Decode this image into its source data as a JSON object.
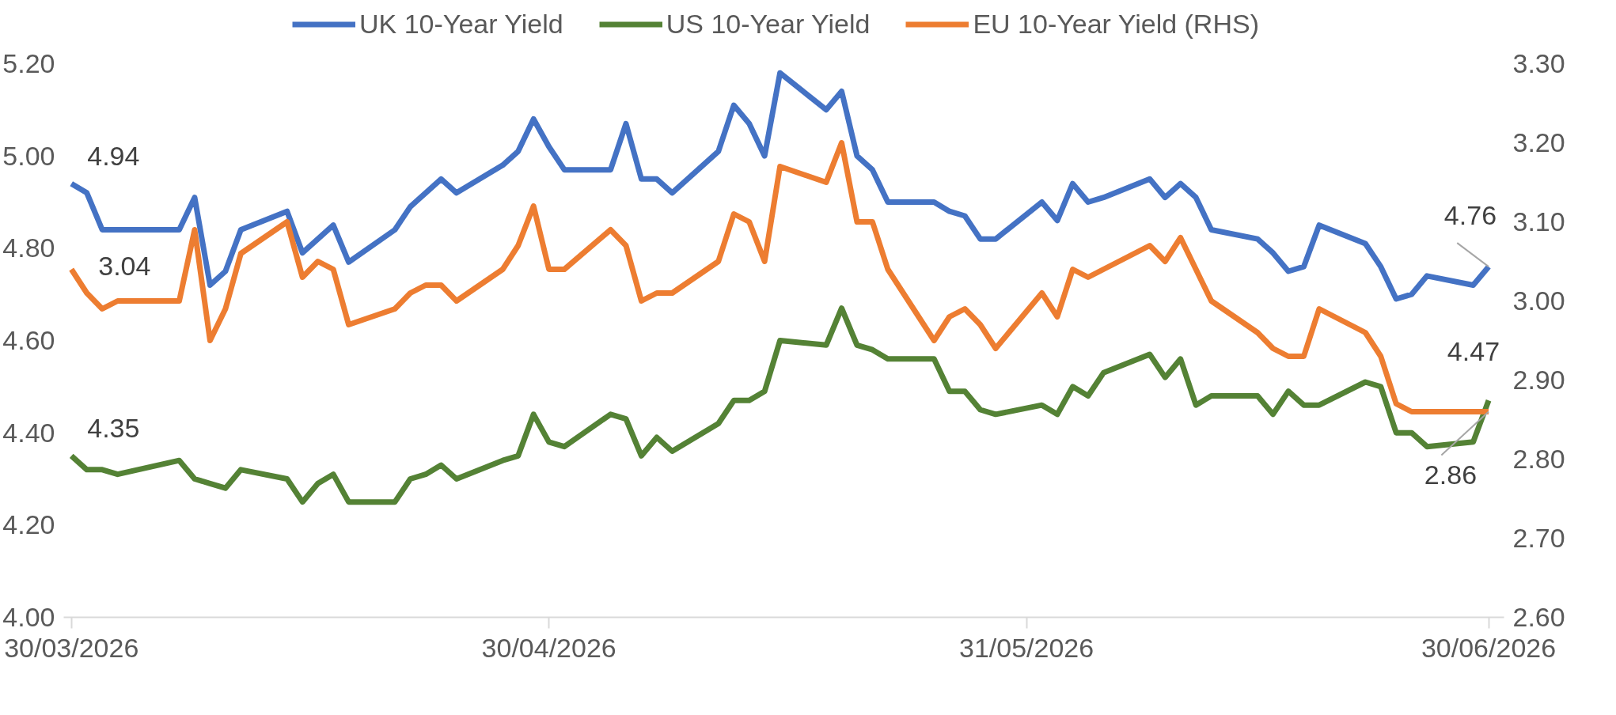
{
  "chart_data": {
    "type": "line",
    "x": [
      "2026-03-30",
      "2026-03-31",
      "2026-04-01",
      "2026-04-02",
      "2026-04-06",
      "2026-04-07",
      "2026-04-08",
      "2026-04-09",
      "2026-04-10",
      "2026-04-13",
      "2026-04-14",
      "2026-04-15",
      "2026-04-16",
      "2026-04-17",
      "2026-04-20",
      "2026-04-21",
      "2026-04-22",
      "2026-04-23",
      "2026-04-24",
      "2026-04-27",
      "2026-04-28",
      "2026-04-29",
      "2026-04-30",
      "2026-05-01",
      "2026-05-04",
      "2026-05-05",
      "2026-05-06",
      "2026-05-07",
      "2026-05-08",
      "2026-05-11",
      "2026-05-12",
      "2026-05-13",
      "2026-05-14",
      "2026-05-15",
      "2026-05-18",
      "2026-05-19",
      "2026-05-20",
      "2026-05-21",
      "2026-05-22",
      "2026-05-25",
      "2026-05-26",
      "2026-05-27",
      "2026-05-28",
      "2026-05-29",
      "2026-06-01",
      "2026-06-02",
      "2026-06-03",
      "2026-06-04",
      "2026-06-05",
      "2026-06-08",
      "2026-06-09",
      "2026-06-10",
      "2026-06-11",
      "2026-06-12",
      "2026-06-15",
      "2026-06-16",
      "2026-06-17",
      "2026-06-18",
      "2026-06-19",
      "2026-06-22",
      "2026-06-23",
      "2026-06-24",
      "2026-06-25",
      "2026-06-26",
      "2026-06-29",
      "2026-06-30"
    ],
    "series": [
      {
        "name": "UK 10-Year Yield",
        "color": "#4472c4",
        "values": [
          4.94,
          4.92,
          4.84,
          4.84,
          4.84,
          4.91,
          4.72,
          4.75,
          4.84,
          4.88,
          4.79,
          4.82,
          4.85,
          4.77,
          4.84,
          4.89,
          4.92,
          4.95,
          4.92,
          4.98,
          5.01,
          5.08,
          5.02,
          4.97,
          4.97,
          5.07,
          4.95,
          4.95,
          4.92,
          5.01,
          5.11,
          5.07,
          5.0,
          5.18,
          5.1,
          5.14,
          5.0,
          4.97,
          4.9,
          4.9,
          4.88,
          4.87,
          4.82,
          4.82,
          4.9,
          4.86,
          4.94,
          4.9,
          4.91,
          4.95,
          4.91,
          4.94,
          4.91,
          4.84,
          4.82,
          4.79,
          4.75,
          4.76,
          4.85,
          4.81,
          4.76,
          4.69,
          4.7,
          4.74,
          4.72,
          4.76
        ],
        "value_labels": [
          "4.94",
          null,
          null,
          null,
          null,
          null,
          null,
          null,
          null,
          null,
          null,
          null,
          null,
          null,
          null,
          null,
          null,
          null,
          null,
          null,
          null,
          null,
          null,
          null,
          null,
          null,
          null,
          null,
          null,
          null,
          null,
          null,
          null,
          null,
          null,
          null,
          null,
          null,
          null,
          null,
          null,
          null,
          null,
          null,
          null,
          null,
          null,
          null,
          null,
          null,
          null,
          null,
          null,
          null,
          null,
          null,
          null,
          null,
          null,
          null,
          null,
          null,
          null,
          null,
          null,
          "4.76"
        ]
      },
      {
        "name": "US 10-Year Yield",
        "color": "#548235",
        "values": [
          4.35,
          4.32,
          4.32,
          4.31,
          4.34,
          4.3,
          4.29,
          4.28,
          4.32,
          4.3,
          4.25,
          4.29,
          4.31,
          4.25,
          4.25,
          4.3,
          4.31,
          4.33,
          4.3,
          4.34,
          4.35,
          4.44,
          4.38,
          4.37,
          4.44,
          4.43,
          4.35,
          4.39,
          4.36,
          4.42,
          4.47,
          4.47,
          4.49,
          4.6,
          4.59,
          4.67,
          4.59,
          4.58,
          4.56,
          4.56,
          4.49,
          4.49,
          4.45,
          4.44,
          4.46,
          4.44,
          4.5,
          4.48,
          4.53,
          4.57,
          4.52,
          4.56,
          4.46,
          4.48,
          4.48,
          4.44,
          4.49,
          4.46,
          4.46,
          4.51,
          4.5,
          4.4,
          4.4,
          4.37,
          4.38,
          4.47
        ],
        "value_labels": [
          "4.35",
          null,
          null,
          null,
          null,
          null,
          null,
          null,
          null,
          null,
          null,
          null,
          null,
          null,
          null,
          null,
          null,
          null,
          null,
          null,
          null,
          null,
          null,
          null,
          null,
          null,
          null,
          null,
          null,
          null,
          null,
          null,
          null,
          null,
          null,
          null,
          null,
          null,
          null,
          null,
          null,
          null,
          null,
          null,
          null,
          null,
          null,
          null,
          null,
          null,
          null,
          null,
          null,
          null,
          null,
          null,
          null,
          null,
          null,
          null,
          null,
          null,
          null,
          null,
          null,
          "4.47"
        ]
      },
      {
        "name": "EU 10-Year Yield (RHS)",
        "color": "#ed7d31",
        "axis": "y2",
        "values": [
          3.04,
          3.01,
          2.99,
          3.0,
          3.0,
          3.09,
          2.95,
          2.99,
          3.06,
          3.1,
          3.03,
          3.05,
          3.04,
          2.97,
          2.99,
          3.01,
          3.02,
          3.02,
          3.0,
          3.04,
          3.07,
          3.12,
          3.04,
          3.04,
          3.09,
          3.07,
          3.0,
          3.01,
          3.01,
          3.05,
          3.11,
          3.1,
          3.05,
          3.17,
          3.15,
          3.2,
          3.1,
          3.1,
          3.04,
          2.95,
          2.98,
          2.99,
          2.97,
          2.94,
          3.01,
          2.98,
          3.04,
          3.03,
          3.04,
          3.07,
          3.05,
          3.08,
          3.04,
          3.0,
          2.96,
          2.94,
          2.93,
          2.93,
          2.99,
          2.96,
          2.93,
          2.87,
          2.86,
          2.86,
          2.86,
          2.86
        ],
        "value_labels": [
          "3.04",
          null,
          null,
          null,
          null,
          null,
          null,
          null,
          null,
          null,
          null,
          null,
          null,
          null,
          null,
          null,
          null,
          null,
          null,
          null,
          null,
          null,
          null,
          null,
          null,
          null,
          null,
          null,
          null,
          null,
          null,
          null,
          null,
          null,
          null,
          null,
          null,
          null,
          null,
          null,
          null,
          null,
          null,
          null,
          null,
          null,
          null,
          null,
          null,
          null,
          null,
          null,
          null,
          null,
          null,
          null,
          null,
          null,
          null,
          null,
          null,
          null,
          null,
          null,
          null,
          "2.86"
        ]
      }
    ],
    "xlim": [
      "2026-03-29T12:00",
      "2026-07-01T00:00"
    ],
    "xticks": [
      {
        "value": "2026-03-30",
        "label": "30/03/2026"
      },
      {
        "value": "2026-04-30",
        "label": "30/04/2026"
      },
      {
        "value": "2026-05-31",
        "label": "31/05/2026"
      },
      {
        "value": "2026-06-30",
        "label": "30/06/2026"
      }
    ],
    "ylim": [
      4.0,
      5.2
    ],
    "yticks": [
      {
        "value": 4.0,
        "label": "4.00"
      },
      {
        "value": 4.2,
        "label": "4.20"
      },
      {
        "value": 4.4,
        "label": "4.40"
      },
      {
        "value": 4.6,
        "label": "4.60"
      },
      {
        "value": 4.8,
        "label": "4.80"
      },
      {
        "value": 5.0,
        "label": "5.00"
      },
      {
        "value": 5.2,
        "label": "5.20"
      }
    ],
    "y2lim": [
      2.6,
      3.3
    ],
    "y2ticks": [
      {
        "value": 2.6,
        "label": "2.60"
      },
      {
        "value": 2.7,
        "label": "2.70"
      },
      {
        "value": 2.8,
        "label": "2.80"
      },
      {
        "value": 2.9,
        "label": "2.90"
      },
      {
        "value": 3.0,
        "label": "3.00"
      },
      {
        "value": 3.1,
        "label": "3.10"
      },
      {
        "value": 3.2,
        "label": "3.20"
      },
      {
        "value": 3.3,
        "label": "3.30"
      }
    ],
    "grid": false,
    "legend": "top",
    "line_style": "solid",
    "marker": "none"
  }
}
